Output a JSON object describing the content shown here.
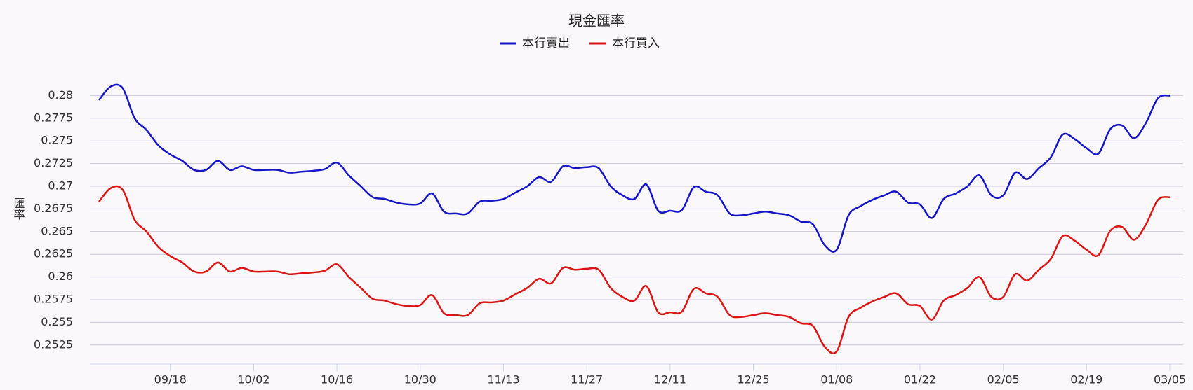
{
  "chart_data": {
    "type": "line",
    "title": "現金匯率",
    "y_label": "匯率",
    "categories": [
      null,
      null,
      null,
      null,
      null,
      null,
      "09/18",
      null,
      null,
      null,
      null,
      null,
      null,
      "10/02",
      null,
      null,
      null,
      null,
      null,
      null,
      "10/16",
      null,
      null,
      null,
      null,
      null,
      null,
      "10/30",
      null,
      null,
      null,
      null,
      null,
      null,
      "11/13",
      null,
      null,
      null,
      null,
      null,
      null,
      "11/27",
      null,
      null,
      null,
      null,
      null,
      null,
      "12/11",
      null,
      null,
      null,
      null,
      null,
      null,
      "12/25",
      null,
      null,
      null,
      null,
      null,
      null,
      "01/08",
      null,
      null,
      null,
      null,
      null,
      null,
      "01/22",
      null,
      null,
      null,
      null,
      null,
      null,
      "02/05",
      null,
      null,
      null,
      null,
      null,
      null,
      "02/19",
      null,
      null,
      null,
      null,
      null,
      null,
      "03/05"
    ],
    "series": [
      {
        "name": "本行賣出",
        "color": "#1414c8",
        "values": [
          0.2795,
          0.281,
          0.2808,
          0.2775,
          0.2762,
          0.2745,
          0.2735,
          0.2728,
          0.2718,
          0.2718,
          0.2728,
          0.2718,
          0.2722,
          0.2718,
          0.2718,
          0.2718,
          0.2715,
          0.2716,
          0.2717,
          0.2719,
          0.2726,
          0.2712,
          0.27,
          0.2688,
          0.2686,
          0.2682,
          0.268,
          0.2681,
          0.2692,
          0.2672,
          0.267,
          0.267,
          0.2683,
          0.2684,
          0.2686,
          0.2693,
          0.27,
          0.271,
          0.2705,
          0.2722,
          0.272,
          0.2721,
          0.272,
          0.27,
          0.269,
          0.2686,
          0.2702,
          0.2673,
          0.2673,
          0.2674,
          0.2699,
          0.2694,
          0.269,
          0.267,
          0.2668,
          0.267,
          0.2672,
          0.267,
          0.2668,
          0.2661,
          0.2658,
          0.2635,
          0.263,
          0.2668,
          0.2678,
          0.2685,
          0.269,
          0.2694,
          0.2682,
          0.268,
          0.2665,
          0.2686,
          0.2692,
          0.27,
          0.2712,
          0.269,
          0.269,
          0.2715,
          0.2708,
          0.272,
          0.2732,
          0.2757,
          0.2752,
          0.2742,
          0.2736,
          0.2763,
          0.2767,
          0.2753,
          0.277,
          0.2797,
          0.28
        ]
      },
      {
        "name": "本行買入",
        "color": "#dc1414",
        "values": [
          0.2683,
          0.2698,
          0.2696,
          0.2663,
          0.265,
          0.2633,
          0.2623,
          0.2616,
          0.2606,
          0.2606,
          0.2616,
          0.2606,
          0.261,
          0.2606,
          0.2606,
          0.2606,
          0.2603,
          0.2604,
          0.2605,
          0.2607,
          0.2614,
          0.26,
          0.2588,
          0.2576,
          0.2574,
          0.257,
          0.2568,
          0.2569,
          0.258,
          0.256,
          0.2558,
          0.2558,
          0.2571,
          0.2572,
          0.2574,
          0.2581,
          0.2588,
          0.2598,
          0.2593,
          0.261,
          0.2608,
          0.2609,
          0.2608,
          0.2588,
          0.2578,
          0.2574,
          0.259,
          0.2561,
          0.2561,
          0.2562,
          0.2587,
          0.2582,
          0.2578,
          0.2558,
          0.2556,
          0.2558,
          0.256,
          0.2558,
          0.2556,
          0.2549,
          0.2546,
          0.2523,
          0.2518,
          0.2556,
          0.2566,
          0.2573,
          0.2578,
          0.2582,
          0.257,
          0.2568,
          0.2553,
          0.2574,
          0.258,
          0.2588,
          0.26,
          0.2578,
          0.2578,
          0.2603,
          0.2596,
          0.2608,
          0.262,
          0.2645,
          0.264,
          0.263,
          0.2624,
          0.2651,
          0.2655,
          0.2641,
          0.2658,
          0.2685,
          0.2688
        ]
      }
    ],
    "ylim": [
      0.2504,
      0.2825
    ],
    "yticks": [
      0.2525,
      0.255,
      0.2575,
      0.26,
      0.2625,
      0.265,
      0.2675,
      0.27,
      0.2725,
      0.275,
      0.2775,
      0.28
    ],
    "grid": true
  }
}
